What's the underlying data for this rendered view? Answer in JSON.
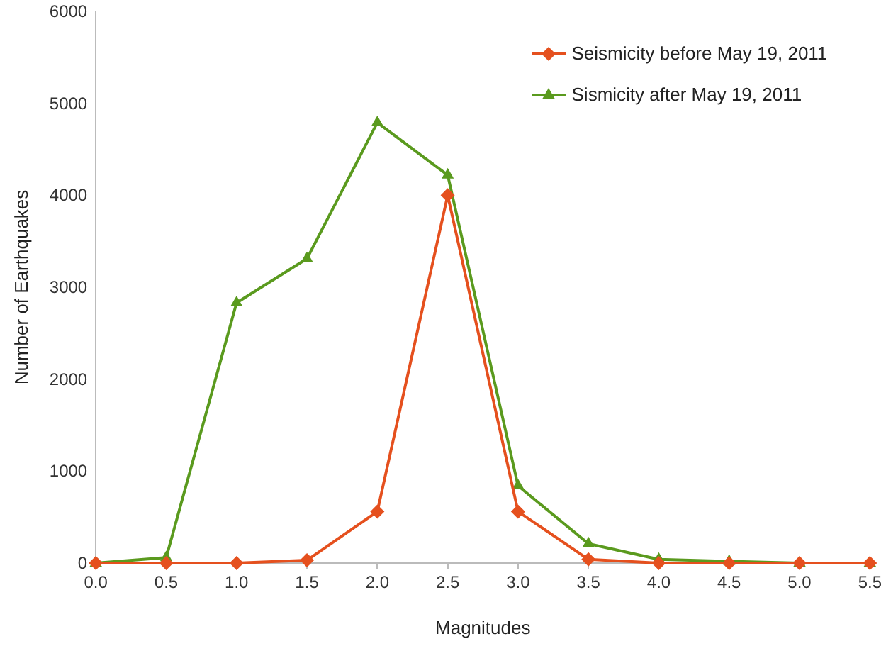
{
  "chart_data": {
    "type": "line",
    "xlabel": "Magnitudes",
    "ylabel": "Number of Earthquakes",
    "x": [
      0.0,
      0.5,
      1.0,
      1.5,
      2.0,
      2.5,
      3.0,
      3.5,
      4.0,
      4.5,
      5.0,
      5.5
    ],
    "xlim": [
      0,
      5.5
    ],
    "xticks": [
      {
        "value": 0,
        "label": "0.0"
      },
      {
        "value": 0.5,
        "label": "0.5"
      },
      {
        "value": 1,
        "label": "1.0"
      },
      {
        "value": 1.5,
        "label": "1.5"
      },
      {
        "value": 2,
        "label": "2.0"
      },
      {
        "value": 2.5,
        "label": "2.5"
      },
      {
        "value": 3,
        "label": "3.0"
      },
      {
        "value": 3.5,
        "label": "3.5"
      },
      {
        "value": 4,
        "label": "4.0"
      },
      {
        "value": 4.5,
        "label": "4.5"
      },
      {
        "value": 5,
        "label": "5.0"
      },
      {
        "value": 5.5,
        "label": "5.5"
      }
    ],
    "ylim": [
      0,
      6000
    ],
    "yticks": [
      0,
      1000,
      2000,
      3000,
      4000,
      5000,
      6000
    ],
    "series": [
      {
        "name": "Seismicity before May 19, 2011",
        "color": "#e5501e",
        "marker": "diamond",
        "values": [
          0,
          0,
          0,
          30,
          560,
          4000,
          560,
          40,
          0,
          0,
          0,
          0
        ]
      },
      {
        "name": "Sismicity after May 19, 2011",
        "color": "#5a9a1e",
        "marker": "triangle",
        "values": [
          0,
          60,
          2830,
          3310,
          4790,
          4220,
          840,
          210,
          40,
          20,
          0,
          0
        ]
      }
    ],
    "grid": false,
    "legend": "top right",
    "line_style": "solid"
  }
}
